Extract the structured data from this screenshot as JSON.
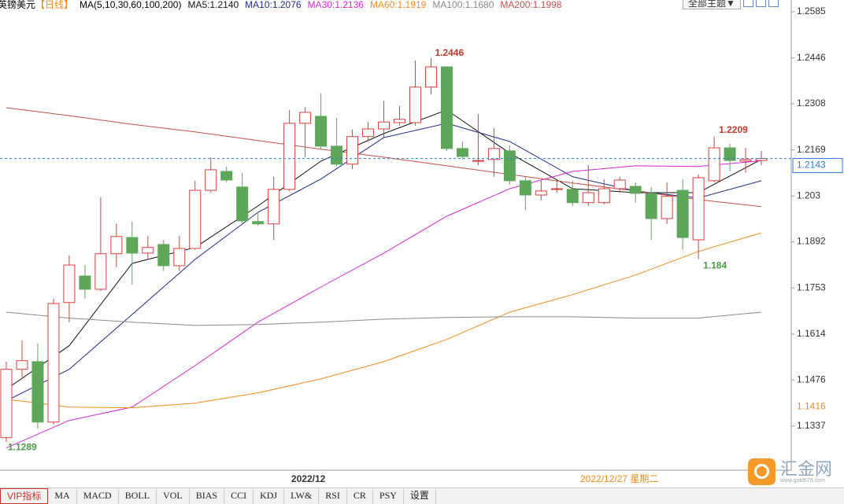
{
  "chart_data": {
    "type": "candlestick",
    "title": "英镑美元",
    "period": "【日线】",
    "ma_params": "MA(5,10,30,60,100,200)",
    "categories": [
      null,
      null,
      null,
      null,
      null,
      null,
      null,
      null,
      null,
      null,
      null,
      null,
      null,
      null,
      null,
      null,
      null,
      null,
      null,
      "2022/12",
      null,
      null,
      null,
      null,
      null,
      null,
      null,
      null,
      null,
      null,
      null,
      null,
      null,
      null,
      null,
      null,
      null,
      null,
      null,
      null,
      null,
      null,
      null,
      null,
      null,
      null,
      null,
      null,
      null
    ],
    "open": [
      1.1302,
      1.1508,
      1.1531,
      1.1349,
      1.1709,
      1.1789,
      1.1749,
      1.1856,
      1.1905,
      1.1858,
      1.1884,
      1.182,
      1.1872,
      1.2047,
      1.2104,
      1.2057,
      1.1953,
      1.1946,
      1.205,
      1.2249,
      1.227,
      1.218,
      1.2126,
      1.2209,
      1.2232,
      1.2251,
      1.2251,
      1.2358,
      1.2419,
      1.2173,
      1.2135,
      1.214,
      1.2166,
      1.2076,
      1.2033,
      1.205,
      1.205,
      1.201,
      1.201,
      1.2052,
      1.2059,
      1.2038,
      1.1962,
      1.2047,
      1.1898,
      1.2076,
      1.2175,
      1.2135,
      1.2137
    ],
    "high": [
      1.1531,
      1.1595,
      1.1586,
      1.1721,
      1.1851,
      1.1822,
      1.2026,
      1.1946,
      1.1953,
      1.191,
      1.1898,
      1.191,
      1.2076,
      1.2147,
      1.2119,
      1.21,
      1.1981,
      1.2088,
      1.2289,
      1.2298,
      1.2339,
      1.2265,
      1.223,
      1.2253,
      1.2317,
      1.2301,
      1.2438,
      1.2446,
      1.2419,
      1.2194,
      1.2277,
      1.2235,
      1.2182,
      1.2088,
      1.2076,
      1.2076,
      1.2076,
      1.2123,
      1.2081,
      1.2088,
      1.2071,
      1.2057,
      1.2071,
      1.2081,
      1.2095,
      1.2209,
      1.2187,
      1.2175,
      1.2166
    ],
    "low": [
      1.1289,
      1.1484,
      1.133,
      1.1342,
      1.165,
      1.1721,
      1.1744,
      1.1815,
      1.1763,
      1.1839,
      1.1804,
      1.1804,
      1.1868,
      1.204,
      1.2071,
      1.1946,
      1.1941,
      1.1898,
      1.2045,
      1.2147,
      1.2171,
      1.2119,
      1.2111,
      1.2194,
      1.2206,
      1.2242,
      1.2242,
      1.2336,
      1.2166,
      1.214,
      1.2123,
      1.2088,
      1.2064,
      1.1988,
      1.2017,
      1.204,
      1.2,
      1.2,
      1.2005,
      1.204,
      1.201,
      1.1898,
      1.1946,
      1.1868,
      1.184,
      1.2071,
      1.2104,
      1.21,
      1.2123
    ],
    "close": [
      1.1508,
      1.1534,
      1.1349,
      1.1706,
      1.1822,
      1.1749,
      1.1856,
      1.1908,
      1.1858,
      1.1875,
      1.182,
      1.1872,
      1.2047,
      1.2109,
      1.2078,
      1.1955,
      1.1946,
      1.205,
      1.2249,
      1.2282,
      1.218,
      1.2126,
      1.2209,
      1.2232,
      1.2253,
      1.2261,
      1.2358,
      1.2419,
      1.2173,
      1.2149,
      1.2137,
      1.2173,
      1.2076,
      1.2033,
      1.2045,
      1.2052,
      1.201,
      1.204,
      1.2052,
      1.2078,
      1.2038,
      1.1962,
      1.2029,
      1.1905,
      1.2085,
      1.2175,
      1.2137,
      1.214,
      1.2143
    ],
    "up_color": "#d4403c",
    "down_color": "#5ea65a",
    "ylim": [
      1.1204,
      1.2592
    ],
    "yticks": [
      1.2585,
      1.2446,
      1.2308,
      1.2169,
      1.203,
      1.1892,
      1.1753,
      1.1614,
      1.1476,
      1.1337
    ],
    "last_price": 1.2143,
    "last_price_color": "#2b7bd6",
    "marker_price": 1.1416,
    "marker_color": "#f08c1e",
    "crosshair_label": "2022/12/27 星期二",
    "lines": [
      {
        "name": "MA5:1.2140",
        "color": "#111111",
        "x": [
          0,
          4,
          8,
          12,
          16,
          20,
          24,
          28,
          32,
          36,
          40,
          44,
          48
        ],
        "values": [
          1.1448,
          1.1579,
          1.1827,
          1.1875,
          1.2,
          1.2135,
          1.2218,
          1.2289,
          1.2159,
          1.2052,
          1.204,
          1.204,
          1.214
        ]
      },
      {
        "name": "MA10:1.2076",
        "color": "#1c2a8c",
        "x": [
          0,
          4,
          8,
          12,
          16,
          20,
          24,
          28,
          32,
          36,
          40,
          44,
          48
        ],
        "values": [
          1.1413,
          1.1508,
          1.1673,
          1.1839,
          1.1981,
          1.2081,
          1.2206,
          1.2249,
          1.2194,
          1.2088,
          1.2045,
          1.2024,
          1.2076
        ]
      },
      {
        "name": "MA30:1.2136",
        "color": "#d627d6",
        "x": [
          0,
          4,
          8,
          12,
          16,
          20,
          24,
          28,
          32,
          36,
          40,
          44,
          48
        ],
        "values": [
          1.1271,
          1.1354,
          1.1394,
          1.1519,
          1.165,
          1.1756,
          1.1858,
          1.1969,
          1.2052,
          1.2104,
          1.2121,
          1.2119,
          1.2136
        ]
      },
      {
        "name": "MA60:1.1919",
        "color": "#f08c1e",
        "x": [
          0,
          4,
          8,
          12,
          16,
          20,
          24,
          28,
          32,
          36,
          40,
          44,
          48
        ],
        "values": [
          1.1418,
          1.1394,
          1.1392,
          1.1406,
          1.1437,
          1.1479,
          1.1531,
          1.1598,
          1.168,
          1.1733,
          1.1792,
          1.1863,
          1.1919
        ]
      },
      {
        "name": "MA100:1.1680",
        "color": "#8a8a8a",
        "x": [
          0,
          4,
          8,
          12,
          16,
          20,
          24,
          28,
          32,
          36,
          40,
          44,
          48
        ],
        "values": [
          1.168,
          1.1662,
          1.165,
          1.164,
          1.1643,
          1.165,
          1.1659,
          1.1664,
          1.1666,
          1.1666,
          1.1662,
          1.1662,
          1.168
        ]
      },
      {
        "name": "MA200:1.1998",
        "color": "#c0504d",
        "x": [
          0,
          4,
          8,
          12,
          16,
          20,
          24,
          28,
          32,
          36,
          40,
          44,
          48
        ],
        "values": [
          1.2296,
          1.2272,
          1.2246,
          1.2223,
          1.2197,
          1.2171,
          1.2147,
          1.2121,
          1.2095,
          1.2069,
          1.2045,
          1.2019,
          1.1998
        ]
      }
    ]
  },
  "header": {
    "theme_button": "全部主题▼"
  },
  "toolbar": {
    "tabs": [
      "VIP指标",
      "MA",
      "MACD",
      "BOLL",
      "VOL",
      "BIAS",
      "CCI",
      "KDJ",
      "LW&",
      "RSI",
      "CR",
      "PSY",
      "设置"
    ]
  },
  "watermark": {
    "name": "汇金网",
    "url": "www.gold678.com"
  }
}
